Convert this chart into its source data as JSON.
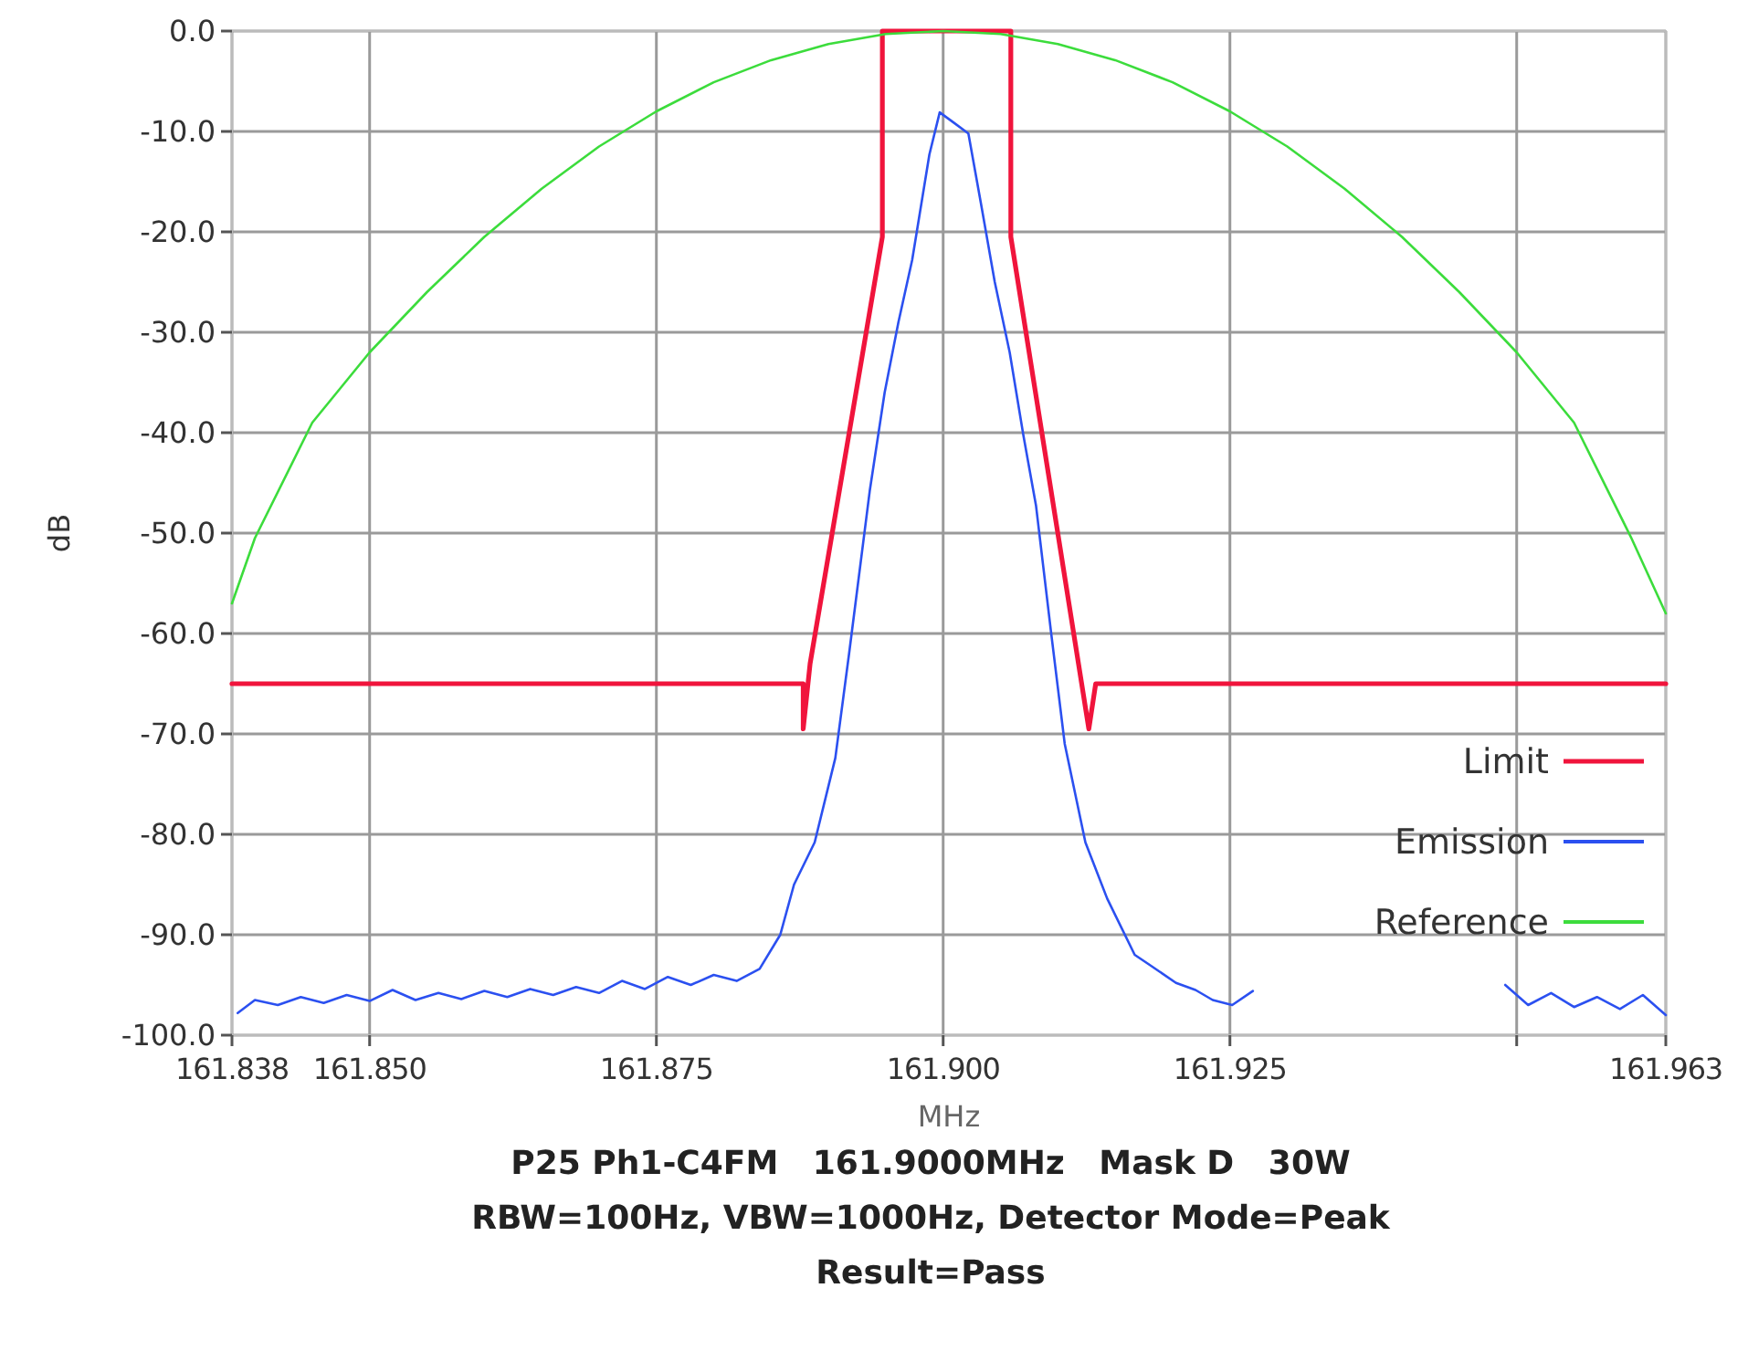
{
  "chart_data": {
    "type": "line",
    "xlabel": "MHz",
    "ylabel": "dB",
    "annotations": [
      "P25 Ph1-C4FM   161.9000MHz   Mask D   30W",
      "RBW=100Hz, VBW=1000Hz, Detector Mode=Peak",
      "Result=Pass"
    ],
    "xlim": [
      161.838,
      161.963
    ],
    "ylim": [
      -100,
      0
    ],
    "xticks": [
      {
        "value": 161.838,
        "label": "161.838"
      },
      {
        "value": 161.85,
        "label": "161.850"
      },
      {
        "value": 161.875,
        "label": "161.875"
      },
      {
        "value": 161.9,
        "label": "161.900"
      },
      {
        "value": 161.925,
        "label": "161.925"
      },
      {
        "value": 161.95,
        "label": null
      },
      {
        "value": 161.963,
        "label": "161.963"
      }
    ],
    "yticks": [
      {
        "value": 0,
        "label": "0.0"
      },
      {
        "value": -10,
        "label": "-10.0"
      },
      {
        "value": -20,
        "label": "-20.0"
      },
      {
        "value": -30,
        "label": "-30.0"
      },
      {
        "value": -40,
        "label": "-40.0"
      },
      {
        "value": -50,
        "label": "-50.0"
      },
      {
        "value": -60,
        "label": "-60.0"
      },
      {
        "value": -70,
        "label": "-70.0"
      },
      {
        "value": -80,
        "label": "-80.0"
      },
      {
        "value": -90,
        "label": "-90.0"
      },
      {
        "value": -100,
        "label": "-100.0"
      }
    ],
    "grid": true,
    "legend": "bottom right",
    "marker": "none",
    "line_style": "solid",
    "series": [
      {
        "name": "Limit",
        "color": "#f0143c",
        "x": [
          161.838,
          161.8878,
          161.8878,
          161.8884,
          161.8947,
          161.8947,
          161.9059,
          161.9059,
          161.9127,
          161.9133,
          161.963
        ],
        "values": [
          -65,
          -65,
          -69.5,
          -63,
          -20.5,
          0,
          0,
          -20.5,
          -69.5,
          -65,
          -65
        ]
      },
      {
        "name": "Emission",
        "color": "#2b50f0",
        "x": [
          161.8385,
          161.84,
          161.842,
          161.844,
          161.846,
          161.848,
          161.85,
          161.852,
          161.854,
          161.856,
          161.858,
          161.86,
          161.862,
          161.864,
          161.866,
          161.868,
          161.87,
          161.872,
          161.874,
          161.876,
          161.878,
          161.88,
          161.882,
          161.884,
          161.8858,
          161.887,
          161.8888,
          161.8906,
          161.8918,
          161.8936,
          161.8949,
          161.8961,
          161.8973,
          161.8988,
          161.8997,
          161.9009,
          161.9022,
          161.9033,
          161.9045,
          161.9058,
          161.907,
          161.9081,
          161.9094,
          161.9106,
          161.9124,
          161.9143,
          161.9167,
          161.918,
          161.9203,
          161.922,
          161.9235,
          161.9252,
          161.927,
          161.9285,
          161.9475,
          161.949,
          161.951,
          161.953,
          161.955,
          161.957,
          161.959,
          161.961,
          161.963
        ],
        "values": [
          -97.8,
          -96.5,
          -97,
          -96.2,
          -96.8,
          -96,
          -96.6,
          -95.5,
          -96.5,
          -95.8,
          -96.4,
          -95.6,
          -96.2,
          -95.4,
          -96,
          -95.2,
          -95.8,
          -94.6,
          -95.4,
          -94.2,
          -95,
          -94,
          -94.6,
          -93.4,
          -90,
          -85,
          -80.8,
          -72.4,
          -62,
          -45.8,
          -36,
          -29,
          -22.8,
          -12.3,
          -8.1,
          -9.1,
          -10.2,
          -17.2,
          -25,
          -32,
          -40.3,
          -47.3,
          -59.8,
          -71,
          -80.8,
          -86.4,
          -92,
          -93,
          -94.8,
          -95.5,
          -96.5,
          -97,
          -95.6,
          null,
          null,
          -95,
          -97,
          -95.8,
          -97.2,
          -96.2,
          -97.4,
          -96,
          -98
        ]
      },
      {
        "name": "Reference",
        "color": "#3cdc3c",
        "x": [
          161.838,
          161.84,
          161.845,
          161.85,
          161.855,
          161.86,
          161.865,
          161.87,
          161.875,
          161.88,
          161.885,
          161.89,
          161.895,
          161.9,
          161.905,
          161.91,
          161.915,
          161.92,
          161.925,
          161.93,
          161.935,
          161.94,
          161.945,
          161.95,
          161.955,
          161.96,
          161.963
        ],
        "values": [
          -57,
          -50.5,
          -39,
          -32,
          -26,
          -20.5,
          -15.7,
          -11.5,
          -8,
          -5.1,
          -2.9,
          -1.3,
          -0.3,
          0,
          -0.3,
          -1.3,
          -2.9,
          -5.1,
          -8,
          -11.5,
          -15.7,
          -20.5,
          -26,
          -32,
          -39,
          -50.5,
          -58
        ]
      }
    ]
  }
}
